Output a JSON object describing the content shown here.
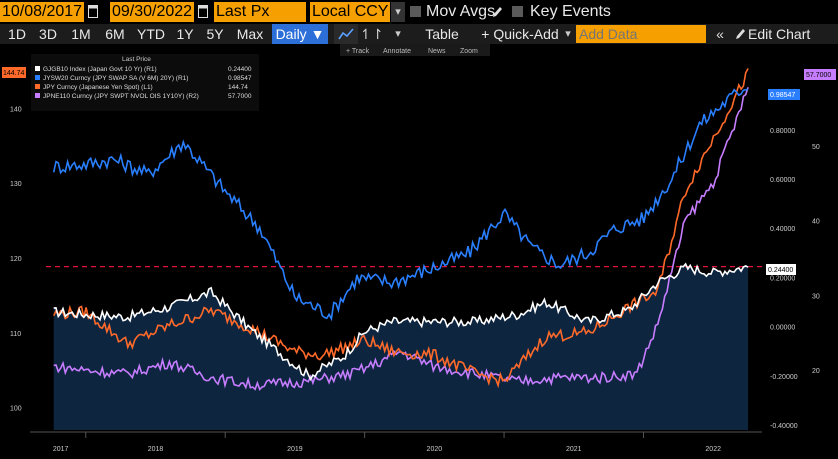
{
  "toolbar": {
    "start_date": "10/08/2017",
    "end_date": "09/30/2022",
    "field": "Last Px",
    "currency": "Local CCY",
    "mov_avgs": "Mov Avgs",
    "key_events": "Key Events"
  },
  "periods": [
    "1D",
    "3D",
    "1M",
    "6M",
    "YTD",
    "1Y",
    "5Y",
    "Max"
  ],
  "frequency": "Daily ▼",
  "actions": {
    "table": "Table",
    "quick_add": "+ Quick-Add",
    "add_data_placeholder": "Add Data",
    "edit_chart": "Edit Chart"
  },
  "chart_tools": [
    "+ Track",
    "Annotate",
    "News",
    "Zoom"
  ],
  "legend": {
    "header": "Last Price",
    "entries": [
      {
        "name": "GJGB10 Index (Japan Govt 10 Yr)  (R1)",
        "value": "0.24400",
        "color": "#ffffff"
      },
      {
        "name": "JYSW20 Curncy (JPY SWAP SA (V 6M) 20Y)  (R1)",
        "value": "0.98547",
        "color": "#2a7fff"
      },
      {
        "name": "JPY Curncy (Japanese Yen Spot)  (L1)",
        "value": "144.74",
        "color": "#ff6a2a"
      },
      {
        "name": "JPNE110 Curncy (JPY SWPT NVOL OIS 1Y10Y)  (R2)",
        "value": "57.7000",
        "color": "#c77dff"
      }
    ]
  },
  "colors": {
    "orange": "#f5a000",
    "bg": "#000000",
    "area": "#0e2540",
    "white": "#ffffff",
    "blue": "#2a7fff",
    "orange_line": "#ff6a2a",
    "purple": "#c77dff",
    "ref_line": "#e0143c"
  },
  "chart_data": {
    "type": "line",
    "x_ticks": [
      "2017",
      "2018",
      "2019",
      "2020",
      "2021",
      "2022"
    ],
    "left_axis": {
      "ticks": [
        "100",
        "110",
        "120",
        "130",
        "140"
      ],
      "ylim": [
        97,
        147
      ]
    },
    "right_axis_1": {
      "ticks": [
        "-0.40000",
        "-0.20000",
        "0.00000",
        "0.20000",
        "0.40000",
        "0.60000",
        "0.80000"
      ],
      "ylim": [
        -0.42,
        1.1
      ]
    },
    "right_axis_2": {
      "ticks": [
        "20",
        "30",
        "40",
        "50"
      ],
      "ylim": [
        12,
        62
      ]
    },
    "reference_line": {
      "series": "GJGB10 Index",
      "value": 0.244
    },
    "last_value_labels": {
      "left": "144.74",
      "right_top": "57.7000",
      "blue": "0.98547",
      "white": "0.24400"
    },
    "series": [
      {
        "name": "GJGB10 Index (Japan Govt 10 Yr)",
        "axis": "R1",
        "t": [
          2017.77,
          2018.0,
          2018.3,
          2018.6,
          2018.9,
          2019.2,
          2019.6,
          2019.85,
          2020.0,
          2020.2,
          2020.5,
          2020.8,
          2021.1,
          2021.3,
          2021.6,
          2021.9,
          2022.1,
          2022.3,
          2022.5,
          2022.75
        ],
        "values": [
          0.06,
          0.05,
          0.04,
          0.08,
          0.14,
          -0.02,
          -0.2,
          -0.12,
          -0.02,
          0.02,
          0.02,
          0.02,
          0.05,
          0.1,
          0.02,
          0.07,
          0.18,
          0.24,
          0.22,
          0.244
        ]
      },
      {
        "name": "JYSW20 Curncy (JPY SWAP SA (V 6M) 20Y)",
        "axis": "R1",
        "t": [
          2017.77,
          2018.0,
          2018.2,
          2018.45,
          2018.7,
          2019.0,
          2019.25,
          2019.5,
          2019.75,
          2019.95,
          2020.2,
          2020.5,
          2020.75,
          2021.0,
          2021.2,
          2021.4,
          2021.6,
          2021.8,
          2022.0,
          2022.2,
          2022.4,
          2022.6,
          2022.75
        ],
        "values": [
          0.65,
          0.66,
          0.68,
          0.62,
          0.75,
          0.55,
          0.4,
          0.12,
          0.05,
          0.2,
          0.18,
          0.24,
          0.3,
          0.46,
          0.32,
          0.25,
          0.3,
          0.4,
          0.44,
          0.6,
          0.82,
          0.92,
          0.98547
        ]
      },
      {
        "name": "JPY Curncy (Japanese Yen Spot)",
        "axis": "L1",
        "t": [
          2017.77,
          2018.0,
          2018.3,
          2018.6,
          2018.9,
          2019.2,
          2019.5,
          2019.7,
          2020.0,
          2020.2,
          2020.5,
          2020.8,
          2021.0,
          2021.3,
          2021.6,
          2021.9,
          2022.1,
          2022.3,
          2022.5,
          2022.75
        ],
        "values": [
          112.5,
          112.8,
          108.5,
          111.0,
          113.0,
          110.5,
          107.5,
          107.0,
          109.0,
          107.5,
          107.0,
          104.5,
          103.5,
          109.5,
          110.0,
          113.5,
          115.5,
          129.0,
          136.0,
          144.74
        ]
      },
      {
        "name": "JPNE110 Curncy (JPY SWPT NVOL OIS 1Y10Y)",
        "axis": "R2",
        "t": [
          2017.77,
          2018.0,
          2018.3,
          2018.6,
          2018.9,
          2019.2,
          2019.6,
          2019.9,
          2020.1,
          2020.25,
          2020.5,
          2020.8,
          2021.1,
          2021.4,
          2021.7,
          2021.95,
          2022.1,
          2022.3,
          2022.5,
          2022.75
        ],
        "values": [
          20.5,
          20.0,
          19.5,
          21.0,
          19.0,
          18.0,
          18.5,
          19.5,
          21.0,
          22.5,
          20.5,
          19.5,
          18.5,
          19.0,
          19.0,
          19.5,
          26.0,
          40.0,
          45.0,
          57.7
        ]
      }
    ]
  }
}
